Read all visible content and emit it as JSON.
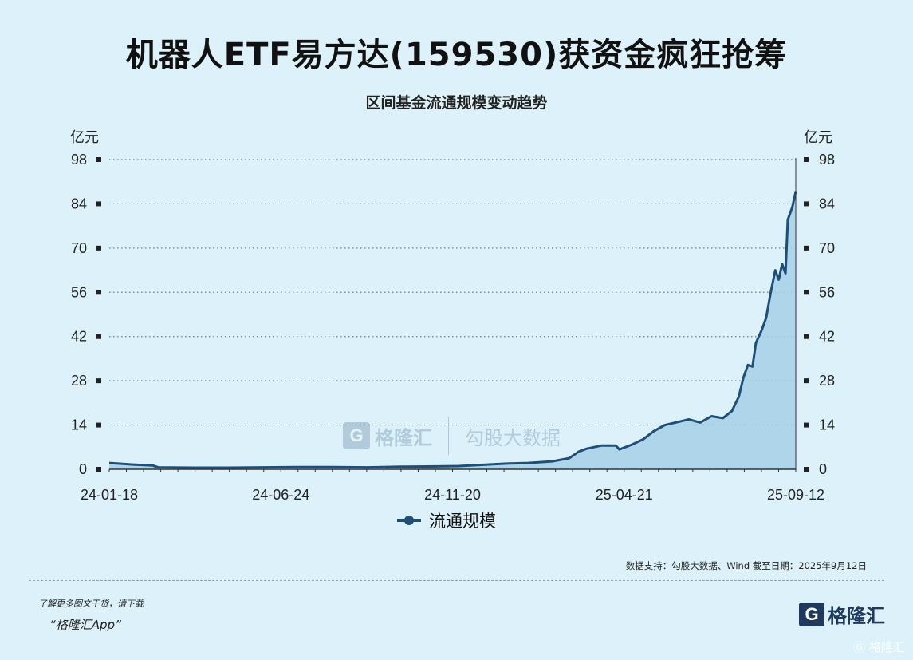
{
  "header": {
    "title": "机器人ETF易方达(159530)获资金疯狂抢筹",
    "subtitle": "区间基金流通规模变动趋势"
  },
  "axis": {
    "unit_left": "亿元",
    "unit_right": "亿元"
  },
  "legend": {
    "label": "流通规模"
  },
  "footer": {
    "source": "数据支持：勾股大数据、Wind 截至日期：2025年9月12日",
    "promo_line1": "了解更多图文干货，请下载",
    "promo_line2": "“格隆汇App”",
    "brand_icon": "G",
    "brand_name": "格隆汇",
    "corner_watermark": "Ⓖ 格隆汇"
  },
  "watermark": {
    "icon": "G",
    "brand": "格隆汇",
    "text": "勾股大数据"
  },
  "colors": {
    "line": "#1f4e79",
    "area": "#a7d0e6",
    "background": "#dcf1fa",
    "grid": "#6b7f8a"
  },
  "chart_data": {
    "type": "area",
    "title": "区间基金流通规模变动趋势",
    "ylabel": "亿元",
    "ylim": [
      0,
      98
    ],
    "yticks": [
      0,
      14,
      28,
      42,
      56,
      70,
      84,
      98
    ],
    "xtick_labels": [
      "24-01-18",
      "24-06-24",
      "24-11-20",
      "25-04-21",
      "25-09-12"
    ],
    "x_range": [
      "2024-01-18",
      "2025-09-12"
    ],
    "grid": true,
    "legend_position": "bottom",
    "series": [
      {
        "name": "流通规模",
        "points": [
          [
            "2024-01-18",
            2.0
          ],
          [
            "2024-02-08",
            1.5
          ],
          [
            "2024-02-25",
            1.2
          ],
          [
            "2024-03-01",
            0.6
          ],
          [
            "2024-04-01",
            0.5
          ],
          [
            "2024-05-01",
            0.5
          ],
          [
            "2024-06-01",
            0.6
          ],
          [
            "2024-07-01",
            0.7
          ],
          [
            "2024-08-01",
            0.7
          ],
          [
            "2024-09-01",
            0.6
          ],
          [
            "2024-10-01",
            0.8
          ],
          [
            "2024-11-01",
            0.9
          ],
          [
            "2024-11-20",
            1.0
          ],
          [
            "2024-12-15",
            1.5
          ],
          [
            "2025-01-01",
            1.8
          ],
          [
            "2025-01-20",
            2.0
          ],
          [
            "2025-02-10",
            2.5
          ],
          [
            "2025-02-25",
            3.5
          ],
          [
            "2025-03-05",
            5.5
          ],
          [
            "2025-03-12",
            6.5
          ],
          [
            "2025-03-25",
            7.5
          ],
          [
            "2025-04-07",
            7.5
          ],
          [
            "2025-04-10",
            6.3
          ],
          [
            "2025-04-21",
            7.8
          ],
          [
            "2025-05-01",
            9.5
          ],
          [
            "2025-05-10",
            12.0
          ],
          [
            "2025-05-20",
            14.0
          ],
          [
            "2025-06-01",
            15.0
          ],
          [
            "2025-06-10",
            15.8
          ],
          [
            "2025-06-20",
            14.8
          ],
          [
            "2025-06-30",
            16.8
          ],
          [
            "2025-07-10",
            16.2
          ],
          [
            "2025-07-18",
            18.5
          ],
          [
            "2025-07-24",
            23.0
          ],
          [
            "2025-07-28",
            29.0
          ],
          [
            "2025-08-01",
            33.0
          ],
          [
            "2025-08-05",
            32.5
          ],
          [
            "2025-08-08",
            40.0
          ],
          [
            "2025-08-13",
            44.0
          ],
          [
            "2025-08-17",
            48.0
          ],
          [
            "2025-08-21",
            56.0
          ],
          [
            "2025-08-25",
            63.0
          ],
          [
            "2025-08-28",
            60.0
          ],
          [
            "2025-08-31",
            65.0
          ],
          [
            "2025-09-03",
            62.0
          ],
          [
            "2025-09-05",
            79.0
          ],
          [
            "2025-09-09",
            83.0
          ],
          [
            "2025-09-12",
            88.0
          ]
        ]
      }
    ]
  }
}
